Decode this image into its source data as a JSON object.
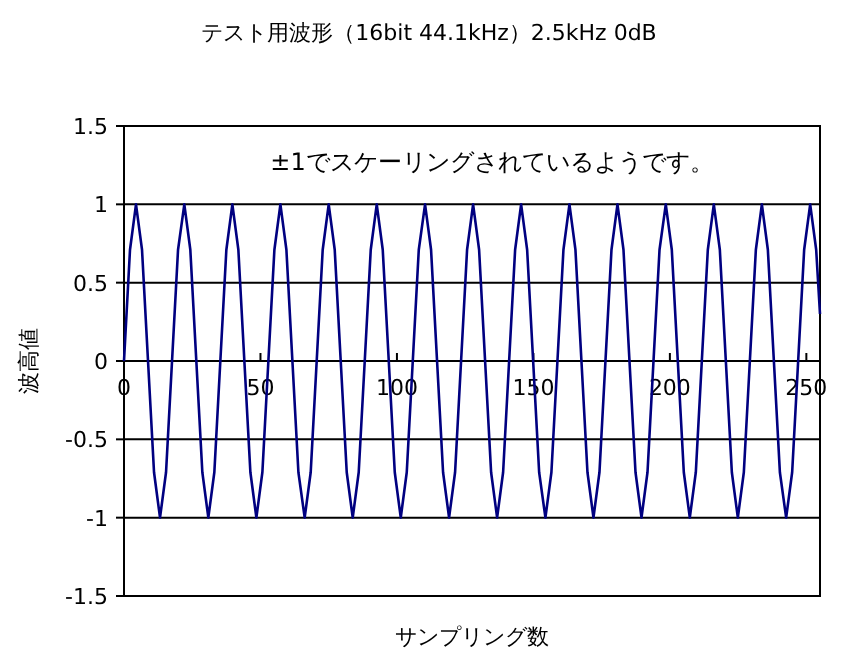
{
  "chart_data": {
    "type": "line",
    "title": "テスト用波形（16bit 44.1kHz）2.5kHz 0dB",
    "xlabel": "サンプリング数",
    "ylabel": "波高値",
    "annotations": [
      "±1でスケーリングされているようです。"
    ],
    "x": [
      0,
      2.2,
      4.4,
      6.6,
      8.8,
      11.0,
      13.2,
      15.4,
      17.6,
      19.8,
      22.1,
      24.3,
      26.5,
      28.7,
      30.9,
      33.1,
      35.3,
      37.5,
      39.7,
      41.9,
      44.1,
      46.3,
      48.5,
      50.7,
      52.9,
      55.1,
      57.3,
      59.5,
      61.7,
      63.9,
      66.2,
      68.4,
      70.6,
      72.8,
      75.0,
      77.2,
      79.4,
      81.6,
      83.8,
      86.0,
      88.2,
      90.4,
      92.6,
      94.8,
      97.0,
      99.2,
      101.4,
      103.6,
      105.8,
      108.0,
      110.3,
      112.5,
      114.7,
      116.9,
      119.1,
      121.3,
      123.5,
      125.7,
      127.9,
      130.1,
      132.3,
      134.5,
      136.7,
      138.9,
      141.1,
      143.3,
      145.5,
      147.7,
      149.9,
      152.1,
      154.4,
      156.6,
      158.8,
      161.0,
      163.2,
      165.4,
      167.6,
      169.8,
      172.0,
      174.2,
      176.4,
      178.6,
      180.8,
      183.0,
      185.2,
      187.4,
      189.6,
      191.8,
      194.0,
      196.2,
      198.5,
      200.7,
      202.9,
      205.1,
      207.3,
      209.5,
      211.7,
      213.9,
      216.1,
      218.3,
      220.5,
      222.7,
      224.9,
      227.1,
      229.3,
      231.5,
      233.7,
      235.9,
      238.1,
      240.3,
      242.6,
      244.8,
      247.0,
      249.2,
      251.4,
      253.6,
      255
    ],
    "series": [
      {
        "color": "#000080",
        "values": [
          0,
          0.71,
          1,
          0.71,
          0,
          -0.71,
          -1,
          -0.71,
          0,
          0.71,
          1,
          0.71,
          0,
          -0.71,
          -1,
          -0.71,
          0,
          0.71,
          1,
          0.71,
          0,
          -0.71,
          -1,
          -0.71,
          0,
          0.71,
          1,
          0.71,
          0,
          -0.71,
          -1,
          -0.71,
          0,
          0.71,
          1,
          0.71,
          0,
          -0.71,
          -1,
          -0.71,
          0,
          0.71,
          1,
          0.71,
          0,
          -0.71,
          -1,
          -0.71,
          0,
          0.71,
          1,
          0.71,
          0,
          -0.71,
          -1,
          -0.71,
          0,
          0.71,
          1,
          0.71,
          0,
          -0.71,
          -1,
          -0.71,
          0,
          0.71,
          1,
          0.71,
          0,
          -0.71,
          -1,
          -0.71,
          0,
          0.71,
          1,
          0.71,
          0,
          -0.71,
          -1,
          -0.71,
          0,
          0.71,
          1,
          0.71,
          0,
          -0.71,
          -1,
          -0.71,
          0,
          0.71,
          1,
          0.71,
          0,
          -0.71,
          -1,
          -0.71,
          0,
          0.71,
          1,
          0.71,
          0,
          -0.71,
          -1,
          -0.71,
          0,
          0.71,
          1,
          0.71,
          0,
          -0.71,
          -1,
          -0.71,
          0,
          0.71,
          1,
          0.71,
          0.3
        ]
      }
    ],
    "xlim": [
      0,
      255
    ],
    "ylim": [
      -1.5,
      1.5
    ],
    "xticks": [
      0,
      50,
      100,
      150,
      200,
      250
    ],
    "yticks": [
      -1.5,
      -1,
      -0.5,
      0,
      0.5,
      1,
      1.5
    ],
    "grid": "y"
  }
}
